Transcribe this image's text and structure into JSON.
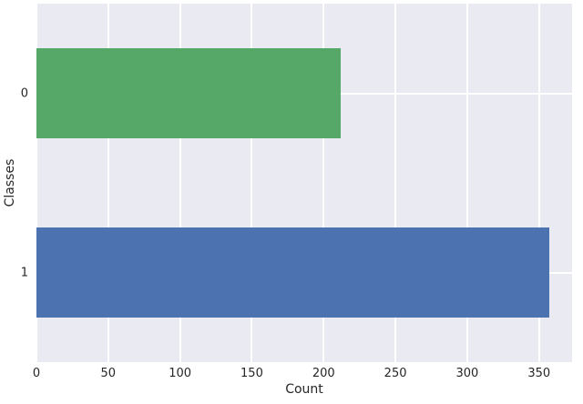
{
  "chart_data": {
    "type": "bar",
    "orientation": "horizontal",
    "title": "",
    "xlabel": "Count",
    "ylabel": "Classes",
    "categories": [
      "0",
      "1"
    ],
    "values": [
      212,
      357
    ],
    "bar_colors": [
      "#55a868",
      "#4c72b0"
    ],
    "bar_fraction": 0.5,
    "xlim": [
      0,
      373
    ],
    "xticks": [
      0,
      50,
      100,
      150,
      200,
      250,
      300,
      350
    ],
    "grid": true,
    "legend": false,
    "figure_bg": "#ffffff",
    "plot_bg": "#eaeaf2",
    "grid_color": "#ffffff",
    "text_color": "#262626"
  }
}
